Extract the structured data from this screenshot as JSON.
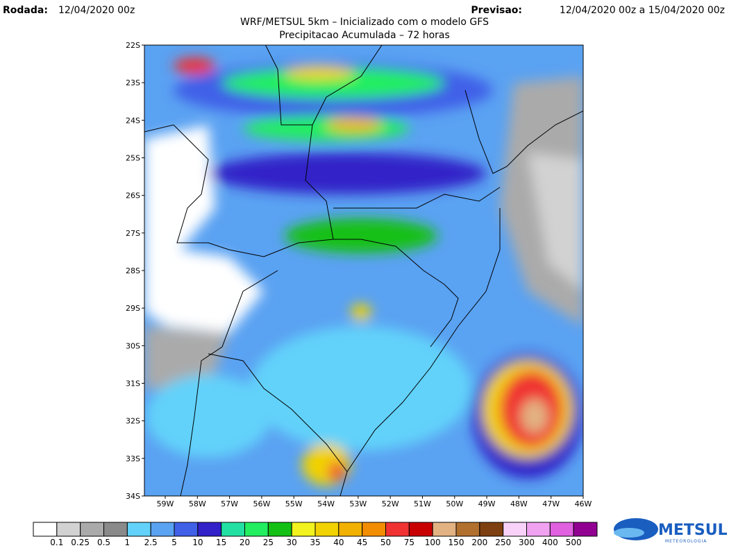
{
  "header": {
    "run_label": "Rodada:",
    "run_value": "12/04/2020 00z",
    "forecast_label": "Previsao:",
    "forecast_value": "12/04/2020 00z a 15/04/2020 00z",
    "title": "WRF/METSUL 5km – Inicializado com o modelo GFS",
    "subtitle": "Precipitacao Acumulada – 72 horas"
  },
  "map": {
    "lat_labels": [
      "22S",
      "23S",
      "24S",
      "25S",
      "26S",
      "27S",
      "28S",
      "29S",
      "30S",
      "31S",
      "32S",
      "33S",
      "34S"
    ],
    "lon_labels": [
      "59W",
      "58W",
      "57W",
      "56W",
      "55W",
      "54W",
      "53W",
      "52W",
      "51W",
      "50W",
      "49W",
      "48W",
      "47W",
      "46W"
    ]
  },
  "legend": {
    "colors": [
      "#ffffff",
      "#d2d2d2",
      "#aaaaaa",
      "#8a8a8a",
      "#62d2fa",
      "#5aa2f2",
      "#4060e8",
      "#3220c8",
      "#22e0a2",
      "#22ee60",
      "#14c014",
      "#f2f21e",
      "#f2d200",
      "#f2b000",
      "#f28c00",
      "#f03232",
      "#c80000",
      "#e2b282",
      "#b2702e",
      "#7e4010",
      "#f8d2f8",
      "#f0a2f0",
      "#e060e0",
      "#920092"
    ],
    "labels": [
      "0.1",
      "0.25",
      "0.5",
      "1",
      "2.5",
      "5",
      "10",
      "15",
      "20",
      "25",
      "30",
      "35",
      "40",
      "45",
      "50",
      "75",
      "100",
      "150",
      "200",
      "250",
      "300",
      "400",
      "500"
    ]
  },
  "logo": {
    "name": "METSUL",
    "tagline": "METEOROLOGIA"
  }
}
